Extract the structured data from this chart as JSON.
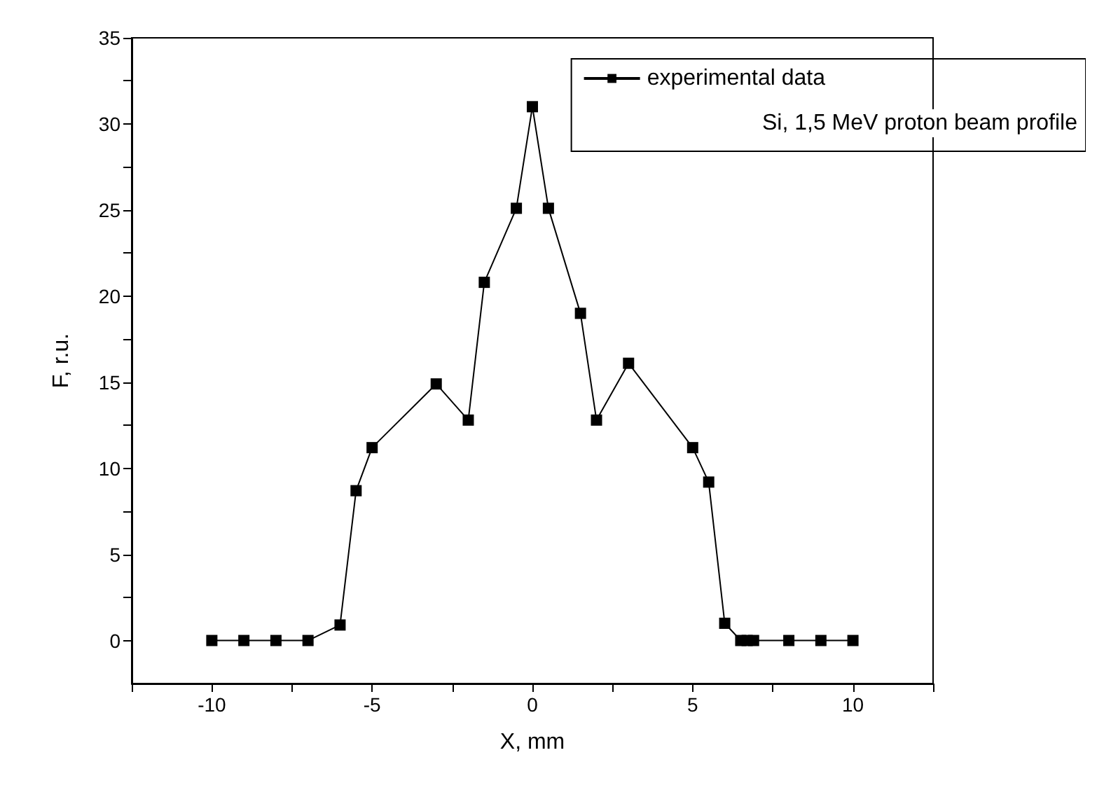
{
  "chart_data": {
    "type": "line",
    "xlabel": "X, mm",
    "ylabel": "F, r.u.",
    "x": [
      -10,
      -9,
      -8,
      -7,
      -6,
      -5.5,
      -5,
      -3,
      -2,
      -1.5,
      -0.5,
      0,
      0.5,
      1.5,
      2,
      3,
      5,
      5.5,
      6,
      6.5,
      6.7,
      6.9,
      8,
      9,
      10
    ],
    "series": [
      {
        "name": "experimental data",
        "color": "#000000",
        "values": [
          0,
          0,
          0,
          0,
          0.9,
          8.7,
          11.2,
          14.9,
          12.8,
          20.8,
          25.1,
          31,
          25.1,
          19,
          12.8,
          16.1,
          11.2,
          9.2,
          1,
          0,
          0,
          0,
          0,
          0,
          0
        ]
      }
    ],
    "xlim": [
      -12.5,
      12.5
    ],
    "xticks": [
      {
        "value": -12.5,
        "label": null
      },
      -10,
      {
        "value": -7.5,
        "label": null
      },
      -5,
      {
        "value": -2.5,
        "label": null
      },
      0,
      {
        "value": 2.5,
        "label": null
      },
      5,
      {
        "value": 7.5,
        "label": null
      },
      10,
      {
        "value": 12.5,
        "label": null
      }
    ],
    "ylim": [
      -2.5,
      35
    ],
    "yticks": [
      0,
      {
        "value": 2.5,
        "label": null
      },
      5,
      {
        "value": 7.5,
        "label": null
      },
      10,
      {
        "value": 12.5,
        "label": null
      },
      15,
      {
        "value": 17.5,
        "label": null
      },
      20,
      {
        "value": 22.5,
        "label": null
      },
      25,
      {
        "value": 27.5,
        "label": null
      },
      30,
      {
        "value": 32.5,
        "label": null
      },
      35
    ],
    "annotations": [
      "Si, 1,5 MeV proton beam profile"
    ],
    "grid": false,
    "legend": "top right",
    "marker": "square",
    "line_style": "solid"
  }
}
